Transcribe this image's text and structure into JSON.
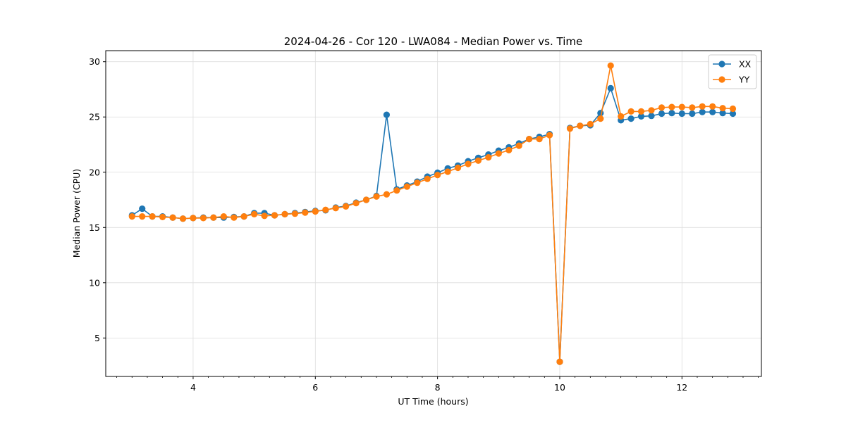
{
  "chart_data": {
    "type": "line",
    "title": "2024-04-26 - Cor 120 - LWA084 - Median Power vs. Time",
    "xlabel": "UT Time (hours)",
    "ylabel": "Median Power (CPU)",
    "xlim": [
      2.57,
      13.3
    ],
    "ylim": [
      1.52,
      31.0
    ],
    "xticks": [
      4,
      6,
      8,
      10,
      12
    ],
    "yticks": [
      5,
      10,
      15,
      20,
      25,
      30
    ],
    "xtick_labels": [
      "4",
      "6",
      "8",
      "10",
      "12"
    ],
    "ytick_labels": [
      "5",
      "10",
      "15",
      "20",
      "25",
      "30"
    ],
    "grid": true,
    "legend_position": "top-right",
    "colors": {
      "XX": "#1f77b4",
      "YY": "#ff7f0e"
    },
    "x": [
      3.0,
      3.167,
      3.333,
      3.5,
      3.667,
      3.833,
      4.0,
      4.167,
      4.333,
      4.5,
      4.667,
      4.833,
      5.0,
      5.167,
      5.333,
      5.5,
      5.667,
      5.833,
      6.0,
      6.167,
      6.333,
      6.5,
      6.667,
      6.833,
      7.0,
      7.167,
      7.333,
      7.5,
      7.667,
      7.833,
      8.0,
      8.167,
      8.333,
      8.5,
      8.667,
      8.833,
      9.0,
      9.167,
      9.333,
      9.5,
      9.667,
      9.833,
      10.0,
      10.167,
      10.333,
      10.5,
      10.667,
      10.833,
      11.0,
      11.167,
      11.333,
      11.5,
      11.667,
      11.833,
      12.0,
      12.167,
      12.333,
      12.5,
      12.667,
      12.833
    ],
    "series": [
      {
        "name": "XX",
        "values": [
          16.1,
          16.7,
          16.0,
          16.0,
          15.9,
          15.8,
          15.85,
          15.9,
          15.9,
          15.9,
          15.95,
          16.0,
          16.3,
          16.3,
          16.1,
          16.2,
          16.3,
          16.4,
          16.5,
          16.55,
          16.8,
          16.95,
          17.25,
          17.5,
          17.85,
          25.2,
          18.45,
          18.8,
          19.15,
          19.6,
          19.95,
          20.35,
          20.6,
          21.0,
          21.3,
          21.6,
          21.95,
          22.25,
          22.6,
          23.0,
          23.2,
          23.45,
          2.85,
          24.0,
          24.2,
          24.25,
          25.35,
          27.6,
          24.7,
          24.85,
          25.05,
          25.1,
          25.3,
          25.35,
          25.3,
          25.3,
          25.45,
          25.45,
          25.35,
          25.3
        ]
      },
      {
        "name": "YY",
        "values": [
          16.0,
          16.0,
          16.0,
          15.95,
          15.9,
          15.8,
          15.85,
          15.85,
          15.9,
          16.0,
          15.9,
          16.0,
          16.2,
          16.05,
          16.1,
          16.2,
          16.25,
          16.35,
          16.45,
          16.6,
          16.75,
          16.9,
          17.2,
          17.5,
          17.8,
          18.0,
          18.35,
          18.7,
          19.05,
          19.4,
          19.75,
          20.05,
          20.4,
          20.75,
          21.05,
          21.35,
          21.7,
          22.0,
          22.4,
          23.0,
          23.0,
          23.35,
          2.85,
          23.95,
          24.2,
          24.35,
          24.85,
          29.65,
          25.05,
          25.5,
          25.5,
          25.6,
          25.85,
          25.9,
          25.9,
          25.85,
          25.95,
          25.95,
          25.8,
          25.75
        ]
      }
    ]
  }
}
